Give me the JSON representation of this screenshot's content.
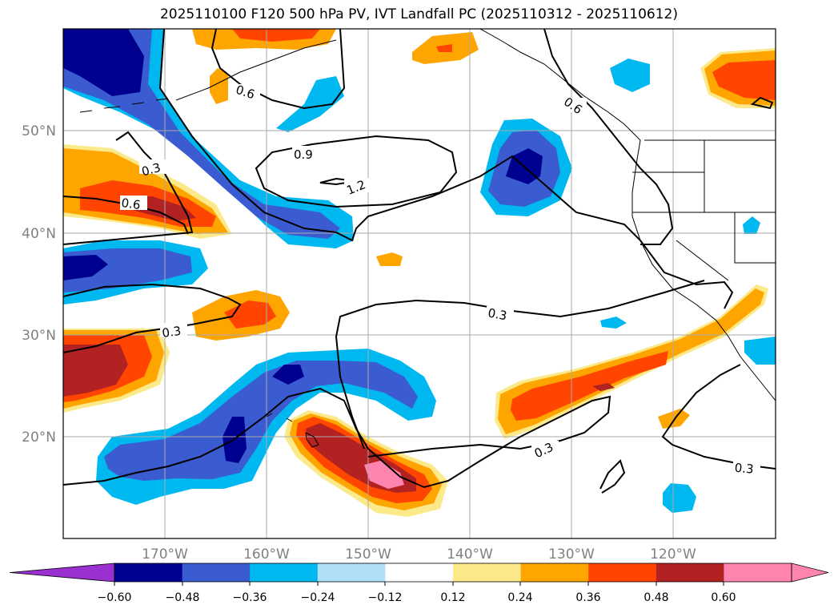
{
  "title": "2025110100 F120 500 hPa PV, IVT Landfall PC (2025110312 - 2025110612)",
  "map": {
    "lon_range": [
      -180,
      -110
    ],
    "lat_range": [
      10,
      60
    ],
    "lat_ticks": [
      {
        "value": 20,
        "label": "20°N"
      },
      {
        "value": 30,
        "label": "30°N"
      },
      {
        "value": 40,
        "label": "40°N"
      },
      {
        "value": 50,
        "label": "50°N"
      }
    ],
    "lon_ticks": [
      {
        "value": -170,
        "label": "170°W"
      },
      {
        "value": -160,
        "label": "160°W"
      },
      {
        "value": -150,
        "label": "150°W"
      },
      {
        "value": -140,
        "label": "140°W"
      },
      {
        "value": -130,
        "label": "130°W"
      },
      {
        "value": -120,
        "label": "120°W"
      }
    ],
    "contour_labels": [
      "0.6",
      "0.6",
      "0.9",
      "1.2",
      "0.3",
      "0.6",
      "0.3",
      "0.3",
      "0.3",
      "0.3"
    ]
  },
  "colorbar": {
    "tick_labels": [
      "−0.60",
      "−0.48",
      "−0.36",
      "−0.24",
      "−0.12",
      "0.12",
      "0.24",
      "0.36",
      "0.48",
      "0.60"
    ],
    "colors": {
      "under": "#9b30d0",
      "bins": [
        "#000090",
        "#3a5cd0",
        "#00b8f0",
        "#b0e0f8",
        "#ffffff",
        "#fce98a",
        "#ffa500",
        "#ff4500",
        "#b22222",
        "#ff85b0"
      ],
      "over": "#ff85b0"
    }
  },
  "colors": {
    "neg_dark": "#000090",
    "neg_mid": "#3a5cd0",
    "neg_light": "#00b8f0",
    "pos_light": "#fce98a",
    "pos_mid": "#ffa500",
    "pos_orange": "#ff4500",
    "pos_dark": "#b22222",
    "pos_max": "#ff85b0",
    "grid": "#aaaaaa",
    "tick_text": "#808080"
  }
}
